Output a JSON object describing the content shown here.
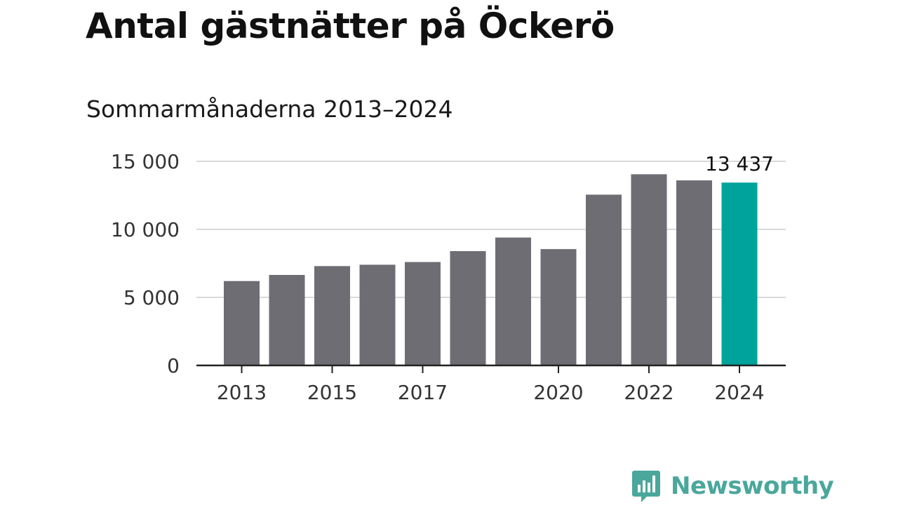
{
  "title": "Antal gästnätter på Öckerö",
  "subtitle": "Sommarmånaderna 2013–2024",
  "brand": {
    "name": "Newsworthy",
    "color": "#4aa79c",
    "icon": "bar-chart-speech-bubble-icon"
  },
  "colors": {
    "bar": "#6e6d73",
    "highlight": "#00a39b",
    "grid": "#d9d9d9",
    "axis": "#222222"
  },
  "chart_data": {
    "type": "bar",
    "categories": [
      "2013",
      "2014",
      "2015",
      "2016",
      "2017",
      "2018",
      "2019",
      "2020",
      "2021",
      "2022",
      "2023",
      "2024"
    ],
    "values": [
      6200,
      6650,
      7300,
      7400,
      7600,
      8400,
      9400,
      8550,
      12550,
      14050,
      13600,
      13437
    ],
    "x_tick_labels": [
      "2013",
      "2015",
      "2017",
      "2020",
      "2022",
      "2024"
    ],
    "y_ticks": [
      0,
      5000,
      10000,
      15000
    ],
    "y_tick_labels": [
      "0",
      "5 000",
      "10 000",
      "15 000"
    ],
    "ylim": [
      0,
      15000
    ],
    "grid": true,
    "highlight_category": "2024",
    "highlight_label": "13 437",
    "xlabel": "",
    "ylabel": ""
  }
}
